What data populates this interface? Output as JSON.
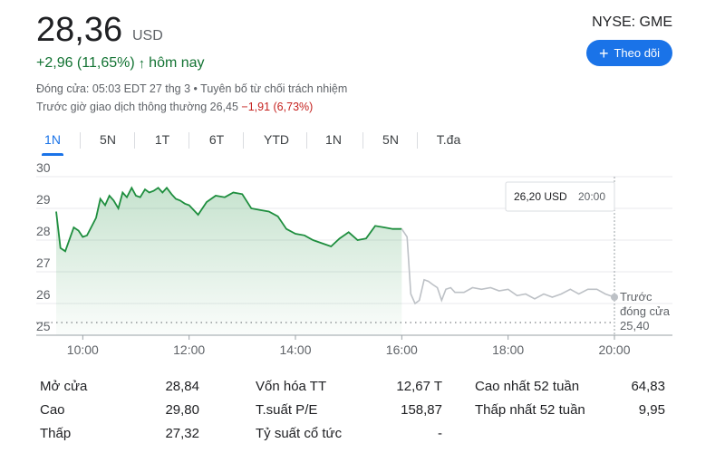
{
  "header": {
    "price": "28,36",
    "currency": "USD",
    "change": "+2,96 (11,65%)",
    "change_arrow": "↑",
    "change_suffix": "hôm nay",
    "close_info": "Đóng cửa: 05:03 EDT 27 thg 3 • Tuyên bố từ chối trách nhiệm",
    "premarket_label": "Trước giờ giao dịch thông thường 26,45",
    "premarket_change": "−1,91 (6,73%)",
    "ticker": "NYSE: GME",
    "follow_label": "Theo dõi"
  },
  "tabs": [
    {
      "label": "1N",
      "active": true
    },
    {
      "label": "5N"
    },
    {
      "label": "1T"
    },
    {
      "label": "6T"
    },
    {
      "label": "YTD"
    },
    {
      "label": "1N"
    },
    {
      "label": "5N"
    },
    {
      "label": "T.đa"
    }
  ],
  "tooltip": {
    "value": "26,20 USD",
    "time": "20:00"
  },
  "chart_data": {
    "type": "line",
    "ylim": [
      25,
      30
    ],
    "yticks": [
      "25",
      "26",
      "27",
      "28",
      "29",
      "30"
    ],
    "xticks": [
      "10:00",
      "12:00",
      "14:00",
      "16:00",
      "18:00",
      "20:00"
    ],
    "xlim_hours": [
      9.5,
      20.0
    ],
    "previous_close": {
      "value": 25.4,
      "label_lines": [
        "Trước",
        "đóng cửa",
        "25,40"
      ]
    },
    "regular_color": "#1e8e3e",
    "extended_color": "#bdc1c6",
    "regular_series": {
      "name": "regular",
      "x": [
        9.5,
        9.58,
        9.67,
        9.83,
        9.92,
        10.0,
        10.08,
        10.25,
        10.33,
        10.42,
        10.5,
        10.58,
        10.67,
        10.75,
        10.83,
        10.92,
        11.0,
        11.08,
        11.17,
        11.25,
        11.33,
        11.42,
        11.5,
        11.58,
        11.67,
        11.75,
        11.83,
        11.92,
        12.0,
        12.17,
        12.33,
        12.5,
        12.67,
        12.83,
        13.0,
        13.17,
        13.33,
        13.5,
        13.67,
        13.83,
        14.0,
        14.17,
        14.33,
        14.5,
        14.67,
        14.83,
        15.0,
        15.17,
        15.33,
        15.5,
        15.67,
        15.83,
        16.0
      ],
      "y": [
        28.9,
        27.75,
        27.65,
        28.4,
        28.3,
        28.1,
        28.15,
        28.7,
        29.3,
        29.1,
        29.4,
        29.25,
        29.0,
        29.5,
        29.35,
        29.65,
        29.4,
        29.35,
        29.6,
        29.5,
        29.55,
        29.65,
        29.5,
        29.65,
        29.45,
        29.3,
        29.25,
        29.15,
        29.1,
        28.8,
        29.2,
        29.4,
        29.35,
        29.5,
        29.45,
        29.0,
        28.95,
        28.9,
        28.75,
        28.35,
        28.2,
        28.15,
        28.0,
        27.9,
        27.8,
        28.05,
        28.25,
        28.0,
        28.05,
        28.45,
        28.4,
        28.35,
        28.35
      ]
    },
    "extended_series": {
      "name": "extended",
      "x": [
        16.0,
        16.1,
        16.17,
        16.25,
        16.33,
        16.42,
        16.5,
        16.58,
        16.67,
        16.75,
        16.83,
        16.92,
        17.0,
        17.17,
        17.33,
        17.5,
        17.67,
        17.83,
        18.0,
        18.17,
        18.33,
        18.5,
        18.67,
        18.83,
        19.0,
        19.17,
        19.33,
        19.5,
        19.67,
        19.83,
        20.0
      ],
      "y": [
        28.35,
        28.1,
        26.3,
        26.0,
        26.1,
        26.75,
        26.7,
        26.6,
        26.5,
        26.1,
        26.45,
        26.5,
        26.35,
        26.35,
        26.5,
        26.45,
        26.5,
        26.4,
        26.45,
        26.25,
        26.3,
        26.15,
        26.3,
        26.2,
        26.3,
        26.45,
        26.3,
        26.45,
        26.45,
        26.3,
        26.2
      ]
    }
  },
  "stats": [
    [
      {
        "label": "Mở cửa",
        "value": "28,84"
      },
      {
        "label": "Vốn hóa TT",
        "value": "12,67 T"
      },
      {
        "label": "Cao nhất 52 tuần",
        "value": "64,83"
      }
    ],
    [
      {
        "label": "Cao",
        "value": "29,80"
      },
      {
        "label": "T.suất P/E",
        "value": "158,87"
      },
      {
        "label": "Thấp nhất 52 tuần",
        "value": "9,95"
      }
    ],
    [
      {
        "label": "Thấp",
        "value": "27,32"
      },
      {
        "label": "Tỷ suất cổ tức",
        "value": "-"
      },
      {
        "label": "",
        "value": ""
      }
    ]
  ]
}
